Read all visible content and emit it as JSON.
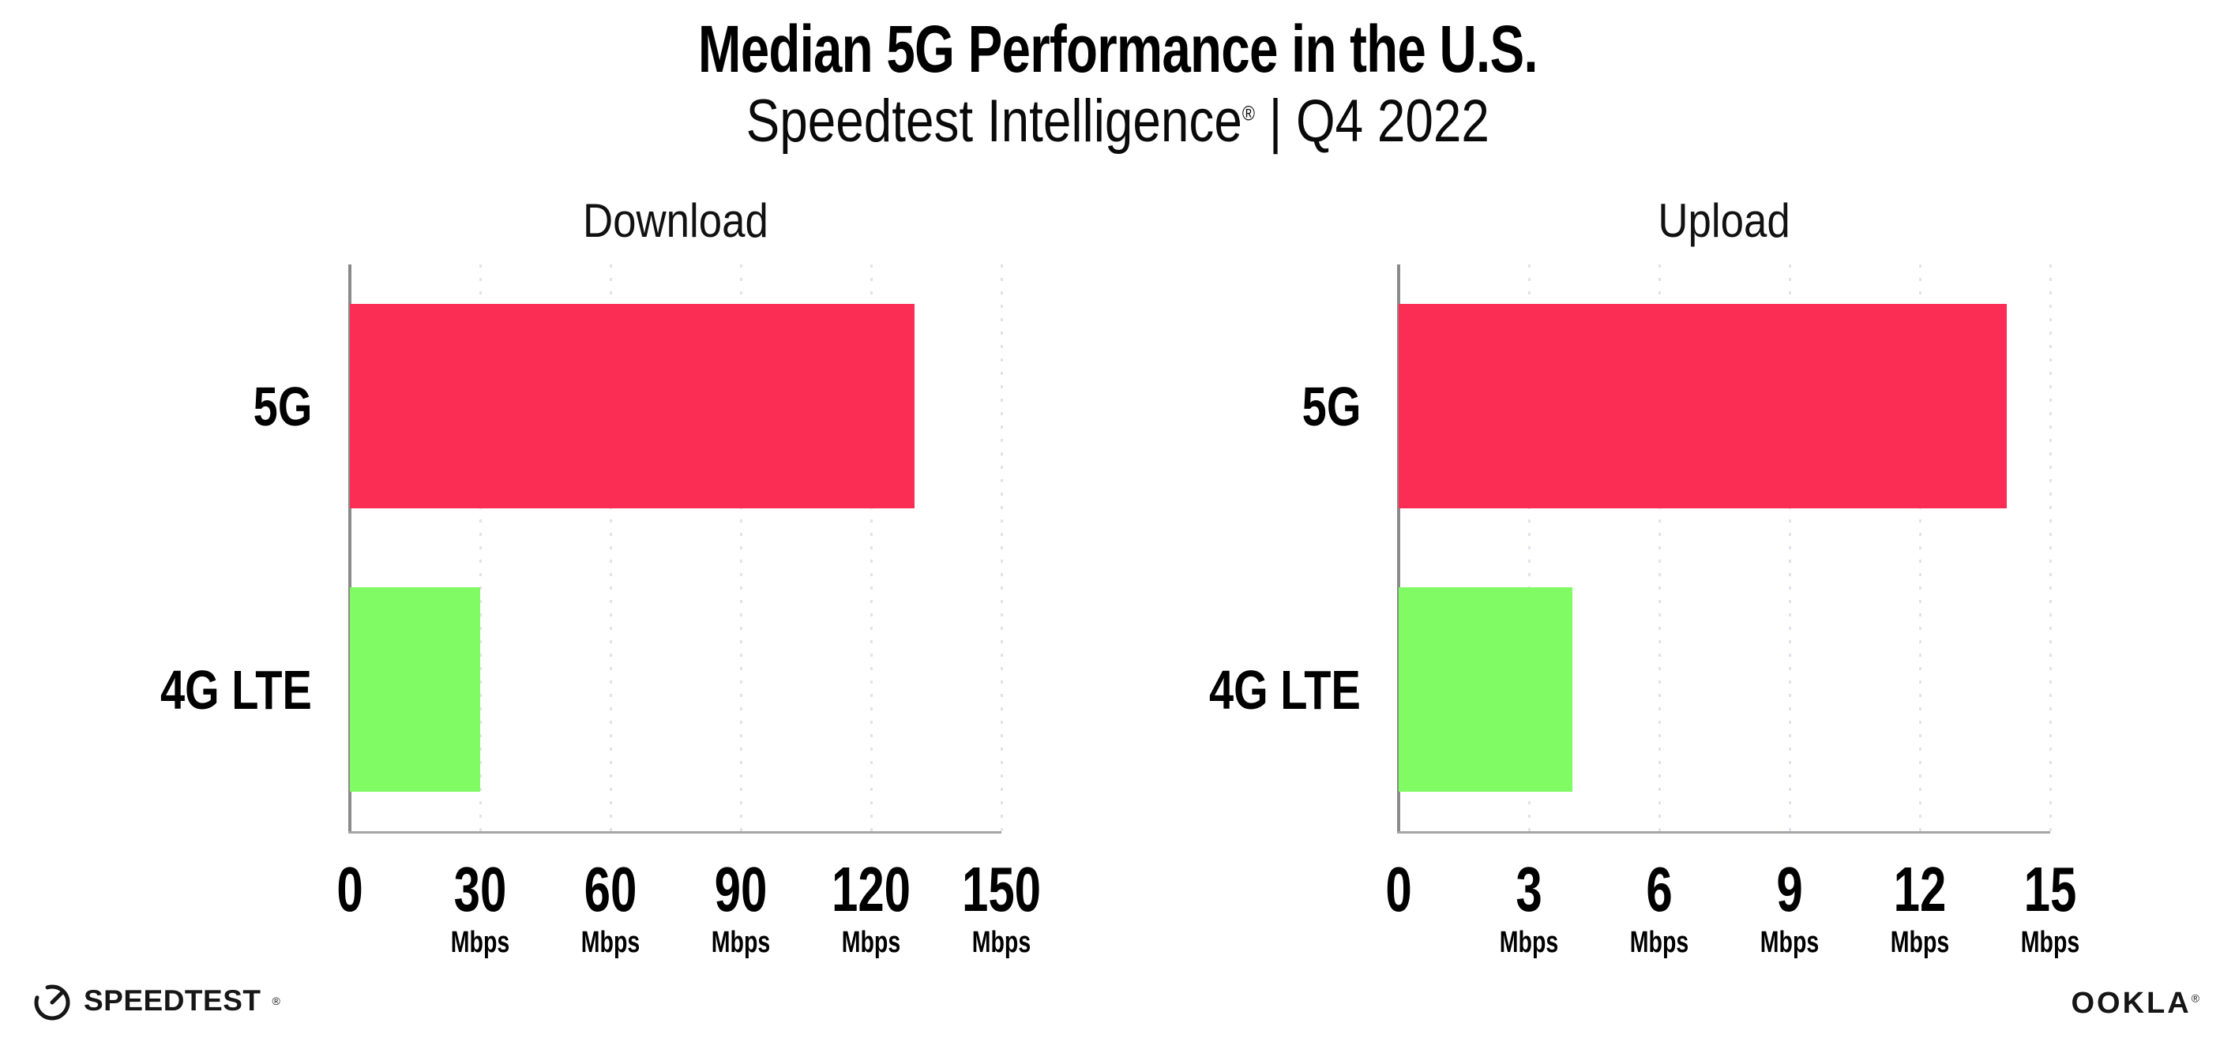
{
  "header": {
    "title": "Median 5G Performance in the U.S.",
    "subtitle_brand": "Speedtest Intelligence",
    "subtitle_reg": "®",
    "subtitle_rest": " | Q4 2022"
  },
  "colors": {
    "bar_5g": "#fc2d55",
    "bar_4g_lte": "#80fb63",
    "gridline": "#e2e2ec",
    "y_axis": "#8a8a8a",
    "x_axis": "#a6a6a6",
    "text": "#000000"
  },
  "chart_data": [
    {
      "type": "bar",
      "orientation": "horizontal",
      "title": "Download",
      "categories": [
        "5G",
        "4G LTE"
      ],
      "values": [
        130,
        30
      ],
      "unit": "Mbps",
      "xlabel": "",
      "ylabel": "",
      "xlim": [
        0,
        150
      ],
      "xticks": [
        0,
        30,
        60,
        90,
        120,
        150
      ],
      "bar_colors": [
        "#fc2d55",
        "#80fb63"
      ],
      "grid": "dotted vertical gridlines at each tick",
      "legend": "none"
    },
    {
      "type": "bar",
      "orientation": "horizontal",
      "title": "Upload",
      "categories": [
        "5G",
        "4G LTE"
      ],
      "values": [
        14,
        4
      ],
      "unit": "Mbps",
      "xlabel": "",
      "ylabel": "",
      "xlim": [
        0,
        15
      ],
      "xticks": [
        0,
        3,
        6,
        9,
        12,
        15
      ],
      "bar_colors": [
        "#fc2d55",
        "#80fb63"
      ],
      "grid": "dotted vertical gridlines at each tick",
      "legend": "none"
    }
  ],
  "footer": {
    "speedtest_wordmark": "SPEEDTEST",
    "speedtest_reg": "®",
    "ookla_wordmark": "OOKLA",
    "ookla_reg": "®"
  }
}
